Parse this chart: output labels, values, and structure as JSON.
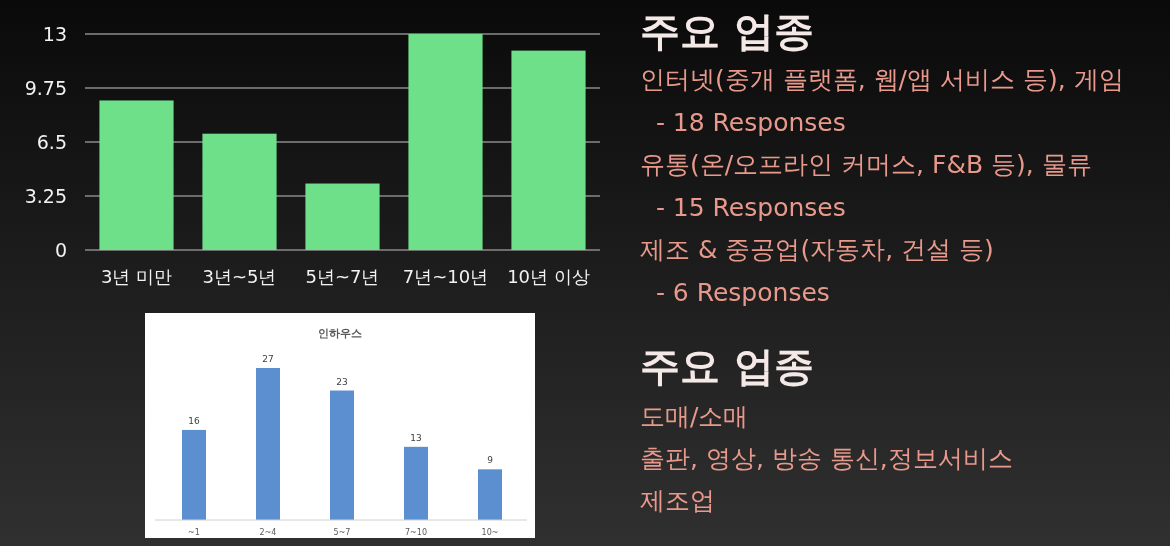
{
  "chart_data": [
    {
      "type": "bar",
      "categories": [
        "3년 미만",
        "3년~5년",
        "5년~7년",
        "7년~10년",
        "10년 이상"
      ],
      "values": [
        9,
        7,
        4,
        13,
        12
      ],
      "color": "#6ee08a",
      "ylim": [
        0,
        13
      ],
      "yticks": [
        0,
        3.25,
        6.5,
        9.75,
        13
      ],
      "grid": "y"
    },
    {
      "type": "other",
      "title": "주요 업종",
      "annotations": [
        "인터넷(중개 플랫폼, 웹/앱 서비스 등), 게임",
        "  - 18 Responses",
        "유통(온/오프라인 커머스, F&B 등), 물류",
        "  - 15 Responses",
        "제조 & 중공업(자동차, 건설 등)",
        "  - 6 Responses"
      ]
    },
    {
      "type": "bar",
      "title": "인하우스",
      "categories": [
        "~1",
        "2~4",
        "5~7",
        "7~10",
        "10~"
      ],
      "values": [
        16,
        27,
        23,
        13,
        9
      ],
      "color": "#5b8fd0",
      "data_labels": true
    },
    {
      "type": "other",
      "title": "주요 업종",
      "annotations": [
        "도매/소매",
        "출판, 영상, 방송 통신,정보서비스",
        "제조업"
      ]
    }
  ]
}
